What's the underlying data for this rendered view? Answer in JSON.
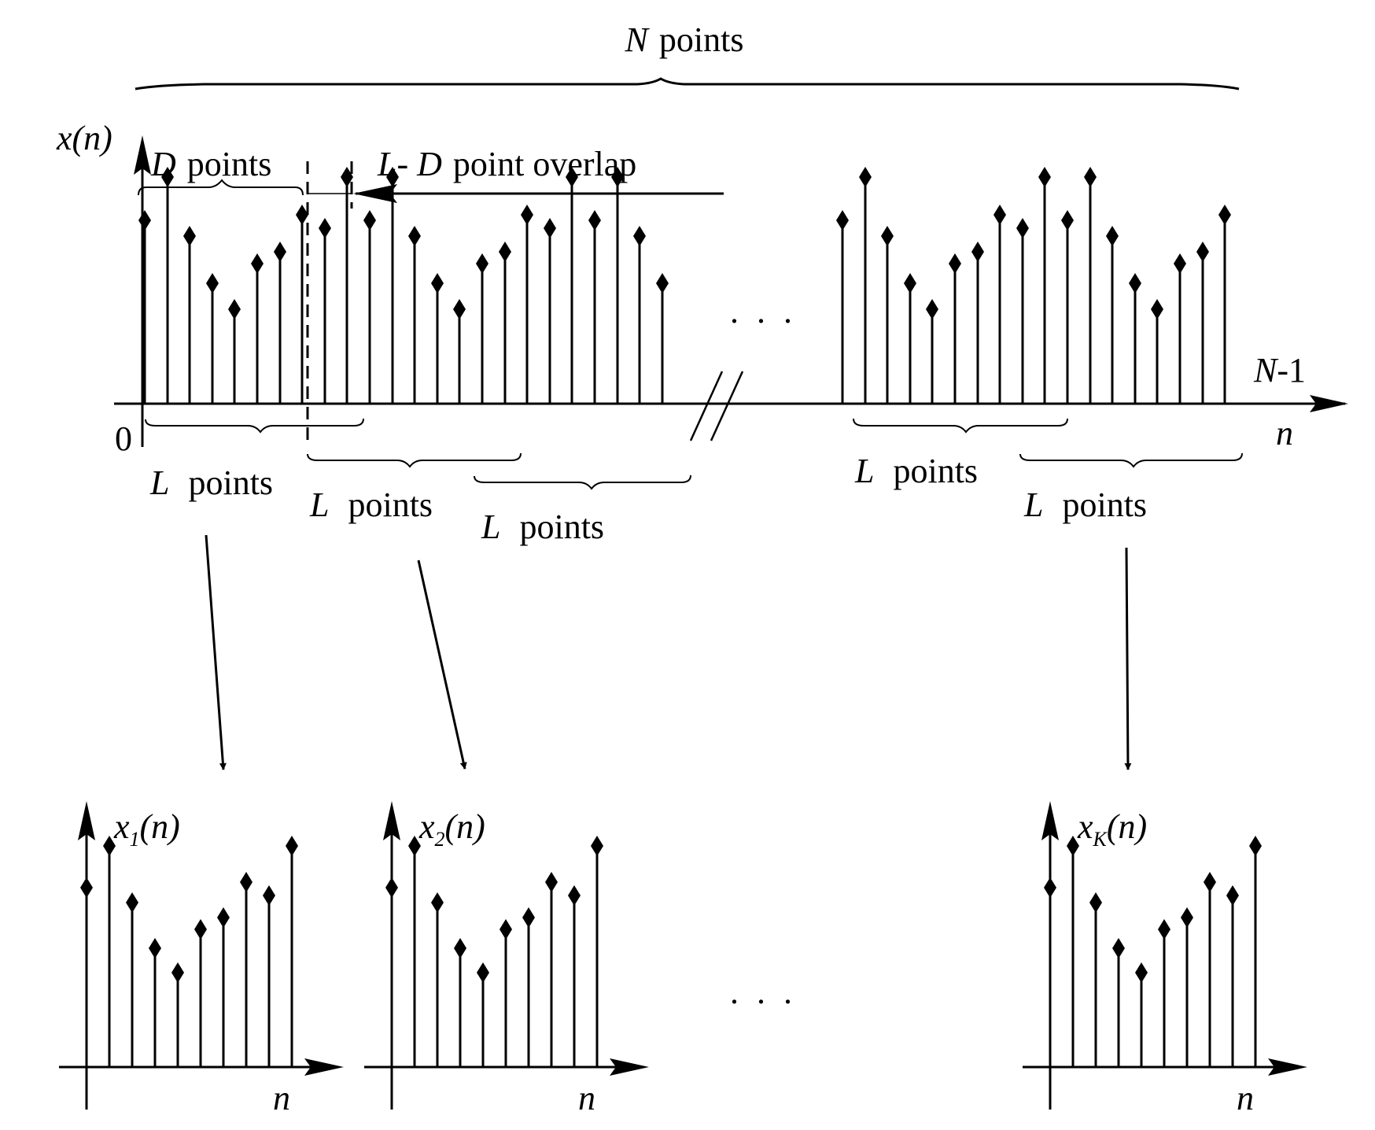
{
  "top": {
    "n_points_label": {
      "symbol": "N",
      "text": "points"
    },
    "axis_y_label": "x(n)",
    "axis_x_label": "n",
    "origin_label": "0",
    "end_label": {
      "symbol": "N",
      "text": "-1"
    },
    "d_points_label": {
      "symbol": "D",
      "text": "points"
    },
    "overlap_label": {
      "symbol": "L- D",
      "text": "point overlap"
    },
    "ellipsis": ". . .",
    "segment_labels": [
      {
        "symbol": "L",
        "text": "points"
      },
      {
        "symbol": "L",
        "text": "points"
      },
      {
        "symbol": "L",
        "text": "points"
      },
      {
        "symbol": "L",
        "text": "points"
      },
      {
        "symbol": "L",
        "text": "points"
      }
    ]
  },
  "frames": [
    {
      "y_label": {
        "base": "x",
        "sub": "1",
        "tail": "(n)"
      },
      "x_label": "n"
    },
    {
      "y_label": {
        "base": "x",
        "sub": "2",
        "tail": "(n)"
      },
      "x_label": "n"
    },
    {
      "y_label": {
        "base": "x",
        "sub": "K",
        "tail": "(n)"
      },
      "x_label": "n"
    }
  ],
  "bottom_ellipsis": ". . .",
  "signal_pattern": [
    0.7,
    0.92,
    0.62,
    0.38,
    0.25,
    0.48,
    0.54,
    0.73,
    0.66,
    0.92
  ],
  "colors": {
    "ink": "#000000",
    "background": "#ffffff"
  }
}
